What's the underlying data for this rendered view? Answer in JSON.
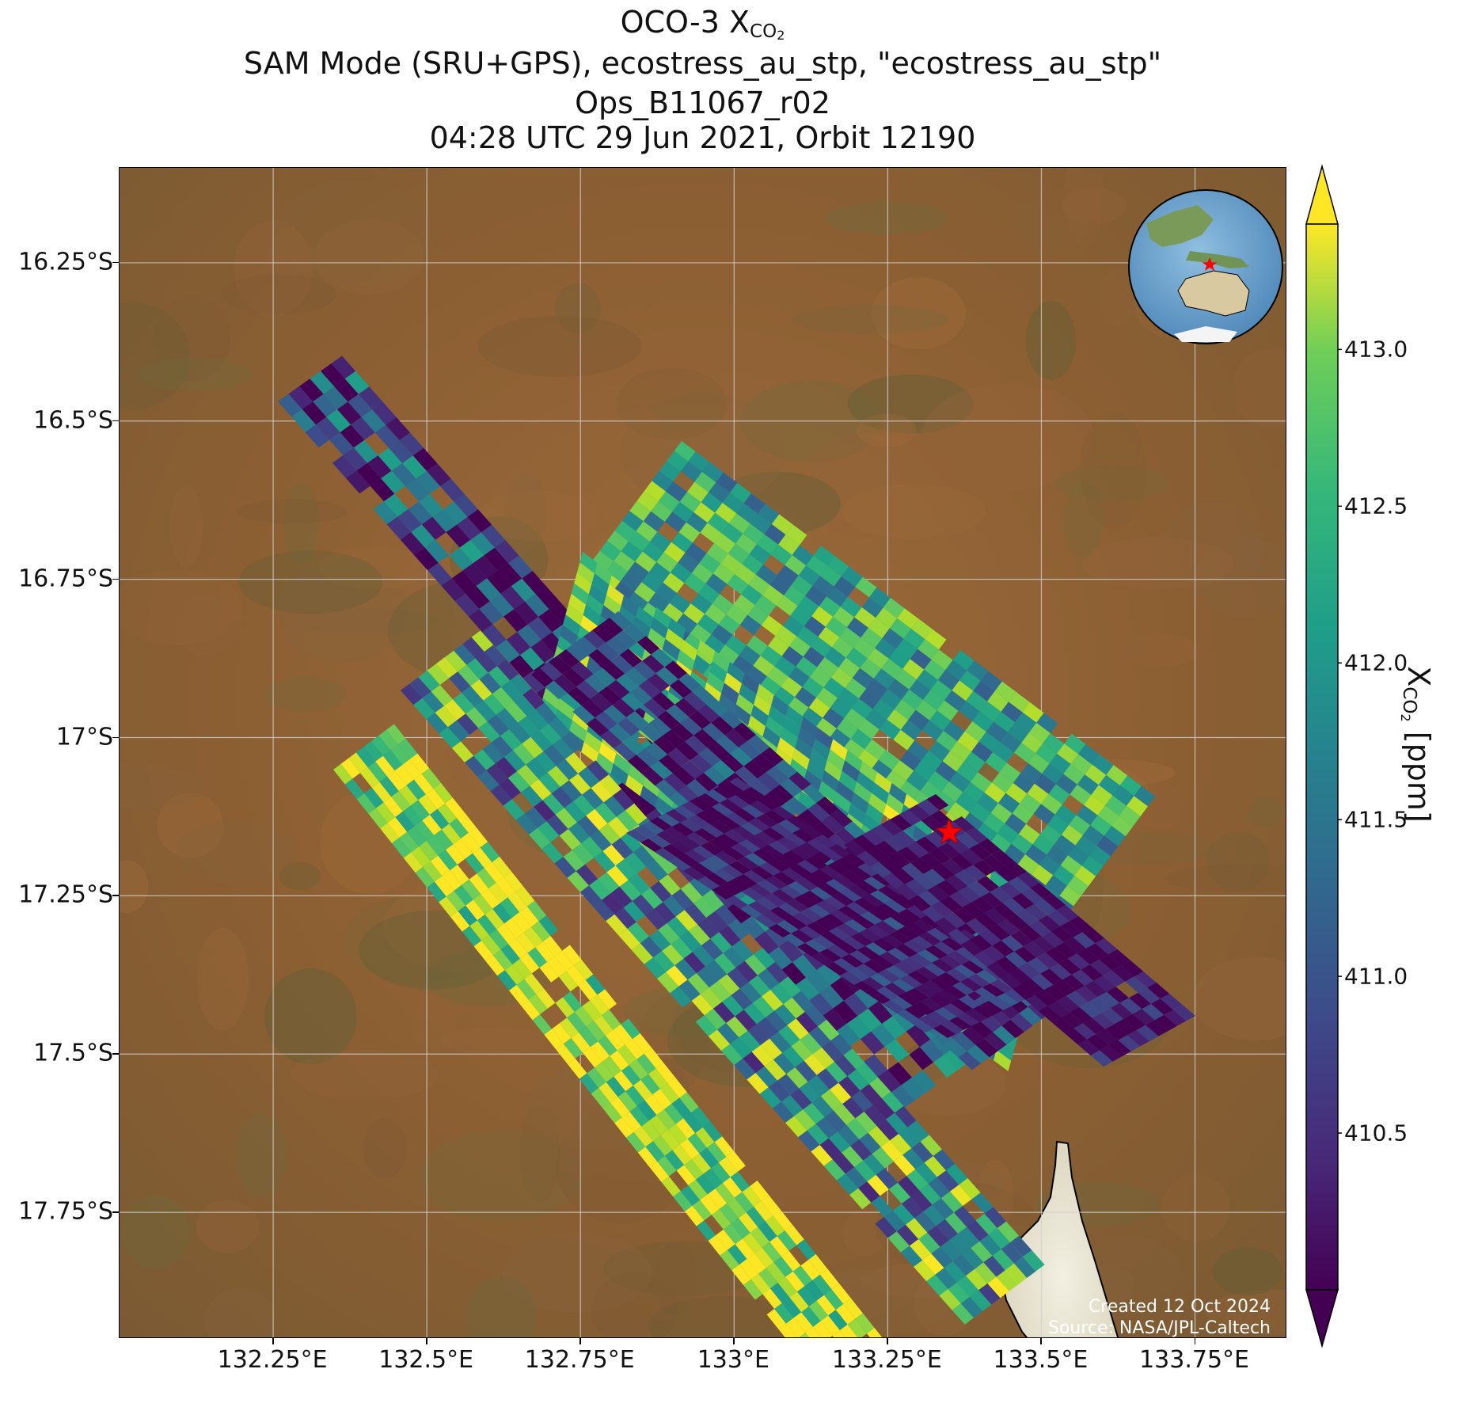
{
  "title": {
    "line1_main": "OCO-3 X",
    "line1_sub": "CO",
    "line1_sub2": "2",
    "line2": "SAM Mode (SRU+GPS), ecostress_au_stp, \"ecostress_au_stp\"",
    "line3": "Ops_B11067_r02",
    "line4": "04:28 UTC 29 Jun 2021, Orbit 12190"
  },
  "chart_data": {
    "type": "heatmap",
    "lon_range": [
      132.0,
      133.9
    ],
    "lat_range": [
      -17.95,
      -16.1
    ],
    "x_ticks": [
      "132.25°E",
      "132.5°E",
      "132.75°E",
      "133°E",
      "133.25°E",
      "133.5°E",
      "133.75°E"
    ],
    "x_tick_values": [
      132.25,
      132.5,
      132.75,
      133.0,
      133.25,
      133.5,
      133.75
    ],
    "y_ticks": [
      "16.25°S",
      "16.5°S",
      "16.75°S",
      "17°S",
      "17.25°S",
      "17.5°S",
      "17.75°S"
    ],
    "y_tick_values": [
      -16.25,
      -16.5,
      -16.75,
      -17.0,
      -17.25,
      -17.5,
      -17.75
    ],
    "grid": true,
    "target_marker": {
      "lon": 133.35,
      "lat": -17.15,
      "color": "#ff0000"
    },
    "colorbar": {
      "label_main": "X",
      "label_sub": "CO",
      "label_sub2": "2",
      "label_unit": " [ppm]",
      "vmin": 410.0,
      "vmax": 413.4,
      "ticks": [
        410.5,
        411.0,
        411.5,
        412.0,
        412.5,
        413.0
      ],
      "tick_labels": [
        "410.5",
        "411.0",
        "411.5",
        "412.0",
        "412.5",
        "413.0"
      ],
      "colormap": "viridis",
      "extend": "both"
    }
  },
  "credit": {
    "line1": "Created 12 Oct 2024",
    "line2": "Source: NASA/JPL-Caltech"
  }
}
